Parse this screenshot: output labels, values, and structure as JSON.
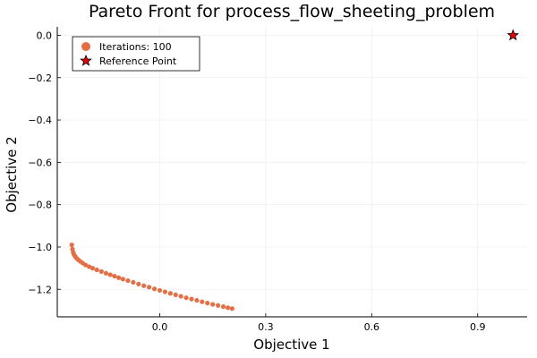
{
  "chart_data": {
    "type": "scatter",
    "title": "Pareto Front for process_flow_sheeting_problem",
    "xlabel": "Objective 1",
    "ylabel": "Objective 2",
    "xlim": [
      -0.29,
      1.04
    ],
    "ylim": [
      -1.33,
      0.04
    ],
    "xticks": [
      0.0,
      0.3,
      0.6,
      0.9
    ],
    "xtick_labels": [
      "0.0",
      "0.3",
      "0.6",
      "0.9"
    ],
    "yticks": [
      0.0,
      -0.2,
      -0.4,
      -0.6,
      -0.8,
      -1.0,
      -1.2
    ],
    "ytick_labels": [
      "0.0",
      "−0.2",
      "−0.4",
      "−0.6",
      "−0.8",
      "−1.0",
      "−1.2"
    ],
    "grid": true,
    "legend_position": "top-left",
    "series": [
      {
        "name": "Iterations: 100",
        "marker": "circle",
        "color": "#e26f46",
        "points": [
          [
            -0.249,
            -0.99
          ],
          [
            -0.247,
            -1.01
          ],
          [
            -0.245,
            -1.025
          ],
          [
            -0.243,
            -1.035
          ],
          [
            -0.24,
            -1.043
          ],
          [
            -0.236,
            -1.052
          ],
          [
            -0.231,
            -1.06
          ],
          [
            -0.225,
            -1.068
          ],
          [
            -0.218,
            -1.076
          ],
          [
            -0.21,
            -1.085
          ],
          [
            -0.2,
            -1.093
          ],
          [
            -0.19,
            -1.1
          ],
          [
            -0.178,
            -1.108
          ],
          [
            -0.165,
            -1.116
          ],
          [
            -0.152,
            -1.124
          ],
          [
            -0.14,
            -1.131
          ],
          [
            -0.128,
            -1.138
          ],
          [
            -0.116,
            -1.145
          ],
          [
            -0.104,
            -1.152
          ],
          [
            -0.09,
            -1.159
          ],
          [
            -0.075,
            -1.167
          ],
          [
            -0.06,
            -1.175
          ],
          [
            -0.045,
            -1.183
          ],
          [
            -0.03,
            -1.19
          ],
          [
            -0.015,
            -1.198
          ],
          [
            0.0,
            -1.205
          ],
          [
            0.015,
            -1.212
          ],
          [
            0.03,
            -1.219
          ],
          [
            0.045,
            -1.226
          ],
          [
            0.06,
            -1.233
          ],
          [
            0.075,
            -1.24
          ],
          [
            0.09,
            -1.246
          ],
          [
            0.105,
            -1.252
          ],
          [
            0.12,
            -1.259
          ],
          [
            0.135,
            -1.265
          ],
          [
            0.15,
            -1.271
          ],
          [
            0.165,
            -1.276
          ],
          [
            0.18,
            -1.282
          ],
          [
            0.193,
            -1.287
          ],
          [
            0.205,
            -1.291
          ]
        ]
      },
      {
        "name": "Reference Point",
        "marker": "star",
        "color": "#e8000b",
        "points": [
          [
            1.0,
            0.0
          ]
        ]
      }
    ]
  }
}
